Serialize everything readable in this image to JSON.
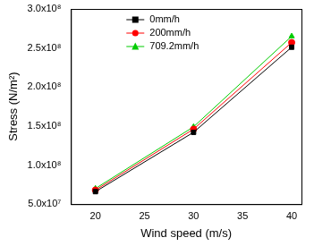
{
  "chart_data": {
    "type": "line",
    "x_label": "Wind speed (m/s)",
    "y_label": "Stress (N/m²)",
    "xlim": [
      17.5,
      41
    ],
    "xticks": [
      20,
      25,
      30,
      35,
      40
    ],
    "ylim": [
      50000000,
      300000000
    ],
    "yticks": [
      {
        "value": 50000000,
        "label": "5.0x10⁷"
      },
      {
        "value": 100000000,
        "label": "1.0x10⁸"
      },
      {
        "value": 150000000,
        "label": "1.5x10⁸"
      },
      {
        "value": 200000000,
        "label": "2.0x10⁸"
      },
      {
        "value": 250000000,
        "label": "2.5x10⁸"
      },
      {
        "value": 300000000,
        "label": "3.0x10⁸"
      }
    ],
    "grid": false,
    "legend": "top-left",
    "x": [
      20,
      30,
      40
    ],
    "series": [
      {
        "name": "0mm/h",
        "color": "#000000",
        "marker": "square",
        "values": [
          66000000,
          142000000,
          251000000
        ]
      },
      {
        "name": "200mm/h",
        "color": "#ff0000",
        "marker": "circle",
        "values": [
          68000000,
          146000000,
          257000000
        ]
      },
      {
        "name": "709.2mm/h",
        "color": "#00cc00",
        "marker": "triangle",
        "values": [
          70000000,
          149000000,
          265000000
        ]
      }
    ]
  }
}
